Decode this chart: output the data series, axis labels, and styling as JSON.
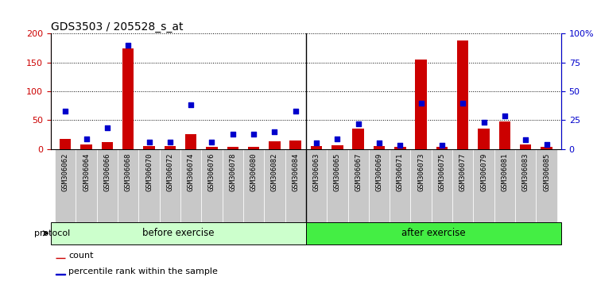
{
  "title": "GDS3503 / 205528_s_at",
  "samples": [
    "GSM306062",
    "GSM306064",
    "GSM306066",
    "GSM306068",
    "GSM306070",
    "GSM306072",
    "GSM306074",
    "GSM306076",
    "GSM306078",
    "GSM306080",
    "GSM306082",
    "GSM306084",
    "GSM306063",
    "GSM306065",
    "GSM306067",
    "GSM306069",
    "GSM306071",
    "GSM306073",
    "GSM306075",
    "GSM306077",
    "GSM306079",
    "GSM306081",
    "GSM306083",
    "GSM306085"
  ],
  "count": [
    18,
    8,
    12,
    175,
    5,
    5,
    25,
    4,
    3,
    4,
    13,
    14,
    5,
    7,
    35,
    5,
    3,
    155,
    3,
    188,
    35,
    48,
    8,
    4
  ],
  "percentile": [
    33,
    9,
    18,
    90,
    6,
    6,
    38,
    6,
    13,
    13,
    15,
    33,
    5,
    9,
    22,
    5,
    3,
    40,
    3,
    40,
    23,
    29,
    8,
    4
  ],
  "before_count": 12,
  "after_count": 12,
  "protocol_label": "protocol",
  "before_label": "before exercise",
  "after_label": "after exercise",
  "legend_count": "count",
  "legend_pct": "percentile rank within the sample",
  "bar_color": "#cc0000",
  "dot_color": "#0000cc",
  "before_bg": "#ccffcc",
  "after_bg": "#44ee44",
  "tick_bg": "#c8c8c8",
  "left_ylim": [
    0,
    200
  ],
  "right_ylim": [
    0,
    100
  ],
  "left_yticks": [
    0,
    50,
    100,
    150,
    200
  ],
  "right_yticks": [
    0,
    25,
    50,
    75,
    100
  ],
  "right_yticklabels": [
    "0",
    "25",
    "50",
    "75",
    "100%"
  ]
}
